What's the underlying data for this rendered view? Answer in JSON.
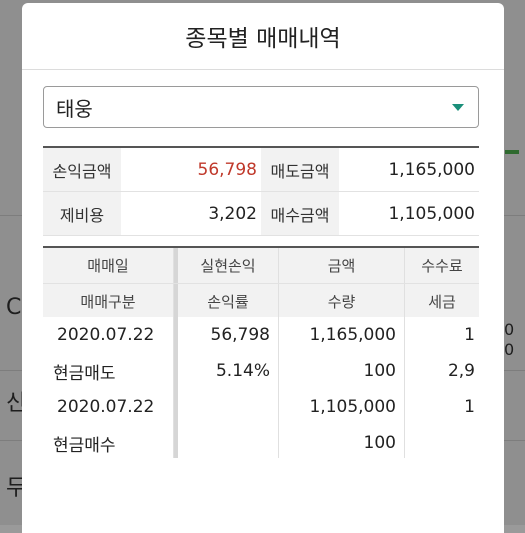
{
  "background": {
    "rows": [
      "C",
      "신",
      "두"
    ],
    "right_values": [
      "0",
      "0"
    ]
  },
  "dialog": {
    "title": "종목별 매매내역",
    "stock_select": {
      "selected": "태웅"
    }
  },
  "summary": {
    "profit_label": "손익금액",
    "profit_value": "56,798",
    "sell_label": "매도금액",
    "sell_value": "1,165,000",
    "fee_label": "제비용",
    "fee_value": "3,202",
    "buy_label": "매수금액",
    "buy_value": "1,105,000"
  },
  "grid": {
    "header1": [
      "매매일",
      "실현손익",
      "금액",
      "수수료"
    ],
    "header2": [
      "매매구분",
      "손익률",
      "수량",
      "세금"
    ],
    "rows": [
      [
        "2020.07.22",
        "56,798",
        "1,165,000",
        "1"
      ],
      [
        "현금매도",
        "5.14%",
        "100",
        "2,9"
      ],
      [
        "2020.07.22",
        "",
        "1,105,000",
        "1"
      ],
      [
        "현금매수",
        "",
        "100",
        ""
      ]
    ]
  },
  "colors": {
    "accent": "#1a8f7a",
    "profit": "#c0392b"
  }
}
